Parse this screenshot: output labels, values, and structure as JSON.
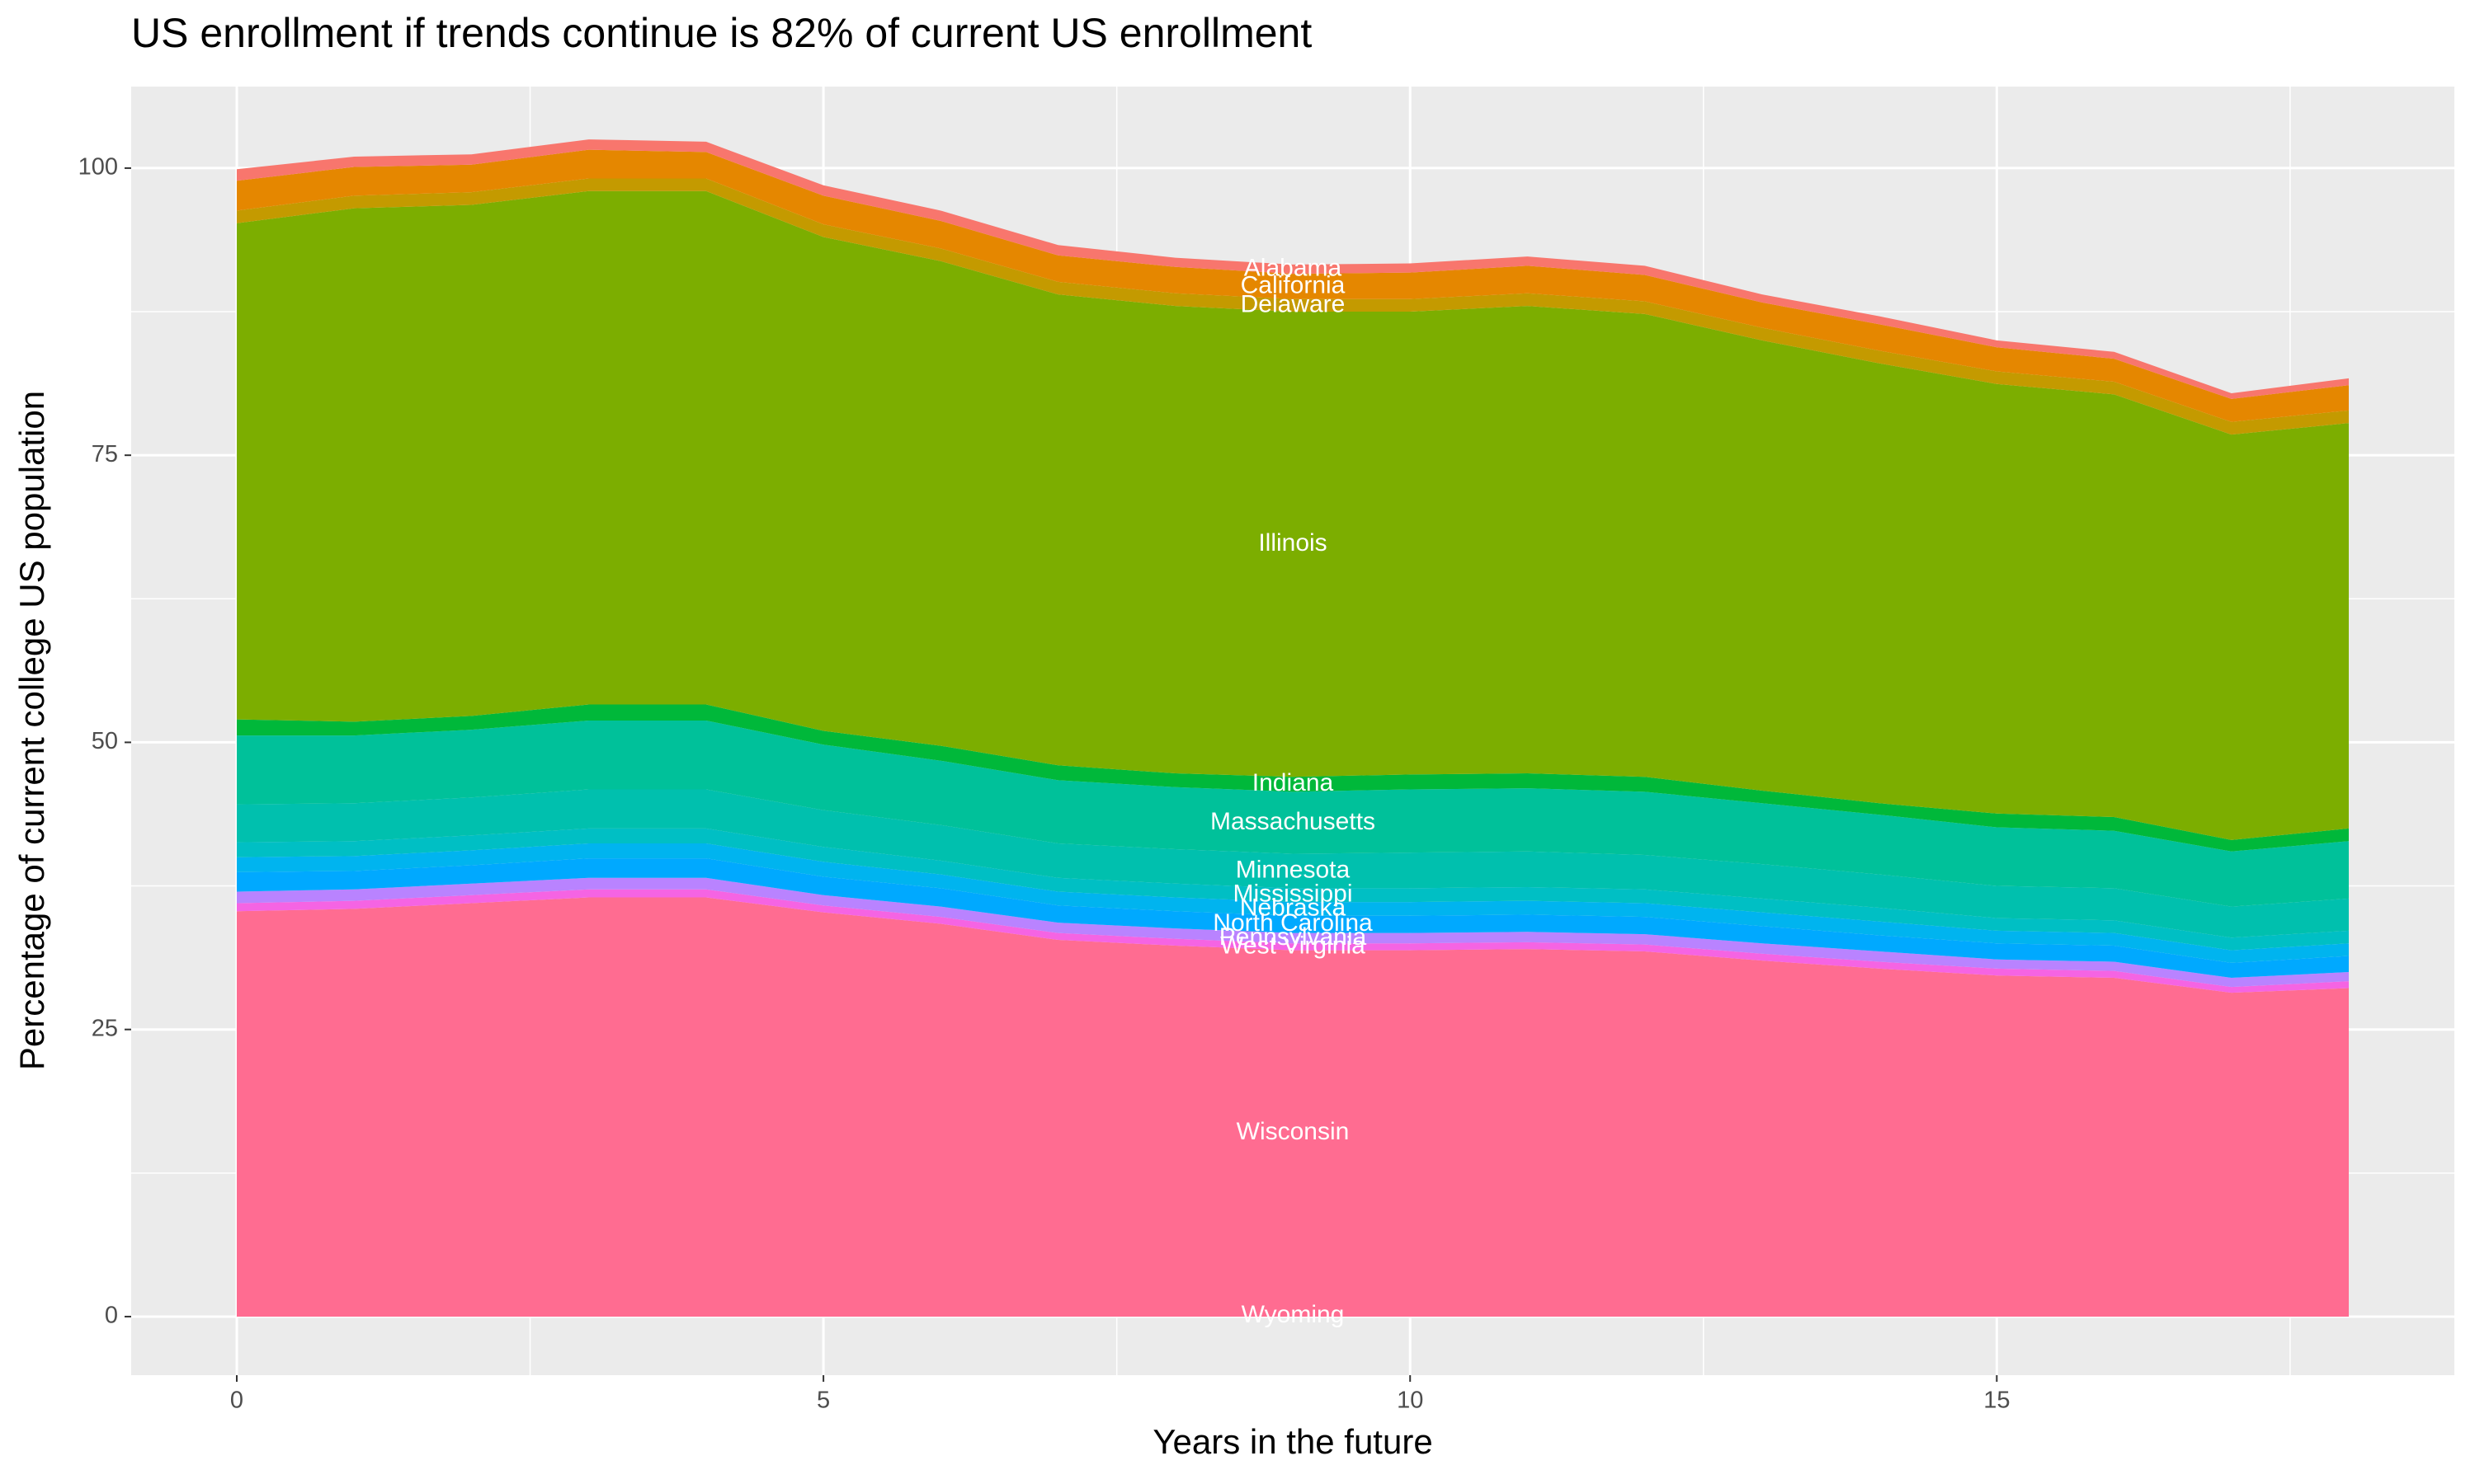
{
  "chart_data": {
    "type": "stacked-area",
    "title": "US enrollment if trends continue is 82% of current US enrollment",
    "x_label": "Years in the future",
    "y_label": "Percentage of current college US population",
    "x": [
      0,
      1,
      2,
      3,
      4,
      5,
      6,
      7,
      8,
      9,
      10,
      11,
      12,
      13,
      14,
      15,
      16,
      17,
      18
    ],
    "xlim": [
      -0.9,
      18.9
    ],
    "xticks": [
      0,
      5,
      10,
      15
    ],
    "ylim": [
      -5.1,
      107.1
    ],
    "yticks": [
      0,
      25,
      50,
      75,
      100
    ],
    "grid": true,
    "series": [
      {
        "name": "Wyoming",
        "color": "#ff6c91",
        "values": [
          0.1,
          0.1,
          0.1,
          0.1,
          0.1,
          0.1,
          0.1,
          0.1,
          0.1,
          0.1,
          0.1,
          0.1,
          0.1,
          0.1,
          0.1,
          0.1,
          0.1,
          0.1,
          0.1
        ]
      },
      {
        "name": "Wisconsin",
        "color": "#ff6c91",
        "values": [
          35.2,
          35.4,
          35.9,
          36.4,
          36.4,
          35.1,
          34.1,
          32.7,
          32.2,
          31.8,
          31.8,
          31.9,
          31.7,
          30.9,
          30.2,
          29.6,
          29.4,
          28.1,
          28.5
        ]
      },
      {
        "name": "West Virginia",
        "color": "#f564e3",
        "values": [
          0.7,
          0.7,
          0.7,
          0.7,
          0.7,
          0.6,
          0.6,
          0.6,
          0.6,
          0.6,
          0.6,
          0.6,
          0.6,
          0.6,
          0.6,
          0.6,
          0.6,
          0.5,
          0.6
        ]
      },
      {
        "name": "Pennsylvania",
        "color": "#b983ff",
        "values": [
          1.0,
          1.0,
          1.0,
          1.0,
          1.0,
          0.9,
          0.9,
          0.9,
          0.9,
          0.9,
          0.9,
          0.9,
          0.9,
          0.9,
          0.9,
          0.8,
          0.8,
          0.8,
          0.8
        ]
      },
      {
        "name": "North Carolina",
        "color": "#00a9ff",
        "values": [
          1.7,
          1.6,
          1.6,
          1.7,
          1.7,
          1.6,
          1.6,
          1.5,
          1.5,
          1.5,
          1.5,
          1.5,
          1.5,
          1.5,
          1.4,
          1.4,
          1.4,
          1.3,
          1.4
        ]
      },
      {
        "name": "Nebraska",
        "color": "#00b4ef",
        "values": [
          1.3,
          1.3,
          1.3,
          1.3,
          1.3,
          1.3,
          1.2,
          1.2,
          1.2,
          1.2,
          1.2,
          1.2,
          1.2,
          1.2,
          1.2,
          1.1,
          1.1,
          1.1,
          1.1
        ]
      },
      {
        "name": "Mississippi",
        "color": "#00bfc4",
        "values": [
          1.3,
          1.3,
          1.3,
          1.3,
          1.3,
          1.3,
          1.2,
          1.2,
          1.2,
          1.2,
          1.2,
          1.2,
          1.2,
          1.2,
          1.2,
          1.1,
          1.1,
          1.1,
          1.1
        ]
      },
      {
        "name": "Minnesota",
        "color": "#00c0ae",
        "values": [
          3.3,
          3.3,
          3.3,
          3.4,
          3.4,
          3.2,
          3.1,
          3.0,
          3.0,
          3.0,
          3.1,
          3.1,
          3.0,
          3.0,
          2.9,
          2.8,
          2.8,
          2.7,
          2.8
        ]
      },
      {
        "name": "Massachusetts",
        "color": "#00c19a",
        "values": [
          6.0,
          5.9,
          5.9,
          6.0,
          6.0,
          5.7,
          5.6,
          5.5,
          5.4,
          5.4,
          5.5,
          5.5,
          5.5,
          5.3,
          5.2,
          5.1,
          5.0,
          4.8,
          5.0
        ]
      },
      {
        "name": "Indiana",
        "color": "#00b83a",
        "values": [
          1.4,
          1.2,
          1.2,
          1.4,
          1.4,
          1.2,
          1.3,
          1.3,
          1.2,
          1.3,
          1.3,
          1.3,
          1.3,
          1.1,
          1.0,
          1.2,
          1.2,
          1.0,
          1.1
        ]
      },
      {
        "name": "Illinois",
        "color": "#7cae00",
        "values": [
          43.2,
          44.7,
          44.5,
          44.7,
          44.7,
          43.0,
          42.2,
          41.0,
          40.7,
          40.5,
          40.3,
          40.7,
          40.3,
          39.2,
          38.3,
          37.4,
          36.8,
          35.3,
          35.3
        ]
      },
      {
        "name": "Delaware",
        "color": "#c49a00",
        "values": [
          1.1,
          1.1,
          1.1,
          1.1,
          1.1,
          1.1,
          1.1,
          1.1,
          1.1,
          1.1,
          1.1,
          1.1,
          1.1,
          1.1,
          1.1,
          1.1,
          1.1,
          1.1,
          1.1
        ]
      },
      {
        "name": "California",
        "color": "#e58700",
        "values": [
          2.6,
          2.5,
          2.4,
          2.5,
          2.3,
          2.5,
          2.4,
          2.3,
          2.3,
          2.2,
          2.3,
          2.4,
          2.3,
          2.2,
          2.3,
          2.1,
          2.0,
          2.0,
          2.2
        ]
      },
      {
        "name": "Alabama",
        "color": "#f8766d",
        "values": [
          1.0,
          0.9,
          0.9,
          0.9,
          0.9,
          0.9,
          0.9,
          0.9,
          0.8,
          0.8,
          0.8,
          0.8,
          0.8,
          0.7,
          0.7,
          0.6,
          0.6,
          0.5,
          0.6
        ]
      }
    ]
  }
}
